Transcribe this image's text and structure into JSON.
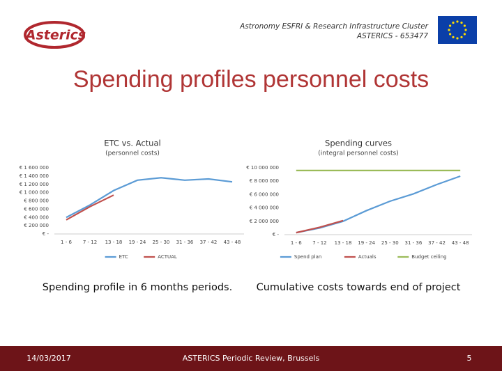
{
  "header": {
    "line1": "Astronomy ESFRI & Research Infrastructure Cluster",
    "line2": "ASTERICS - 653477",
    "logo": "Asterics"
  },
  "title": "Spending profiles personnel costs",
  "footer": {
    "date": "14/03/2017",
    "event": "ASTERICS Periodic Review, Brussels",
    "page": "5"
  },
  "chart_data": [
    {
      "type": "line",
      "title": "ETC vs. Actual",
      "subtitle": "(personnel costs)",
      "caption": "Spending profile in 6 months periods.",
      "categories": [
        "1 - 6",
        "7 - 12",
        "13 - 18",
        "19 - 24",
        "25 - 30",
        "31 - 36",
        "37 - 42",
        "43 - 48"
      ],
      "series": [
        {
          "name": "ETC",
          "color": "#5b9bd5",
          "values": [
            400000,
            700000,
            1050000,
            1300000,
            1360000,
            1300000,
            1330000,
            1260000
          ]
        },
        {
          "name": "ACTUAL",
          "color": "#c0504d",
          "values": [
            340000,
            660000,
            940000,
            null,
            null,
            null,
            null,
            null
          ]
        }
      ],
      "ylim": [
        0,
        1600000
      ],
      "yticks": [
        {
          "value": 0,
          "label": "€ -"
        },
        {
          "value": 200000,
          "label": "€ 200 000"
        },
        {
          "value": 400000,
          "label": "€ 400 000"
        },
        {
          "value": 600000,
          "label": "€ 600 000"
        },
        {
          "value": 800000,
          "label": "€ 800 000"
        },
        {
          "value": 1000000,
          "label": "€ 1 000 000"
        },
        {
          "value": 1200000,
          "label": "€ 1 200 000"
        },
        {
          "value": 1400000,
          "label": "€ 1 400 000"
        },
        {
          "value": 1600000,
          "label": "€ 1 600 000"
        }
      ],
      "grid": false,
      "legend": "bottom"
    },
    {
      "type": "line",
      "title": "Spending curves",
      "subtitle": "(integral personnel costs)",
      "caption": "Cumulative costs towards end of project",
      "categories": [
        "1 - 6",
        "7 - 12",
        "13 - 18",
        "19 - 24",
        "25 - 30",
        "31 - 36",
        "37 - 42",
        "43 - 48"
      ],
      "series": [
        {
          "name": "Spend plan",
          "color": "#5b9bd5",
          "values": [
            300000,
            1000000,
            2000000,
            3600000,
            5000000,
            6100000,
            7500000,
            8750000
          ]
        },
        {
          "name": "Actuals",
          "color": "#c0504d",
          "values": [
            300000,
            1100000,
            2100000,
            null,
            null,
            null,
            null,
            null
          ]
        },
        {
          "name": "Budget ceiling",
          "color": "#9bbb59",
          "values": [
            9600000,
            9600000,
            9600000,
            9600000,
            9600000,
            9600000,
            9600000,
            9600000
          ]
        }
      ],
      "ylim": [
        0,
        10000000
      ],
      "yticks": [
        {
          "value": 0,
          "label": "€ -"
        },
        {
          "value": 2000000,
          "label": "€ 2 000 000"
        },
        {
          "value": 4000000,
          "label": "€ 4 000 000"
        },
        {
          "value": 6000000,
          "label": "€ 6 000 000"
        },
        {
          "value": 8000000,
          "label": "€ 8 000 000"
        },
        {
          "value": 10000000,
          "label": "€ 10 000 000"
        }
      ],
      "grid": false,
      "legend": "bottom"
    }
  ]
}
